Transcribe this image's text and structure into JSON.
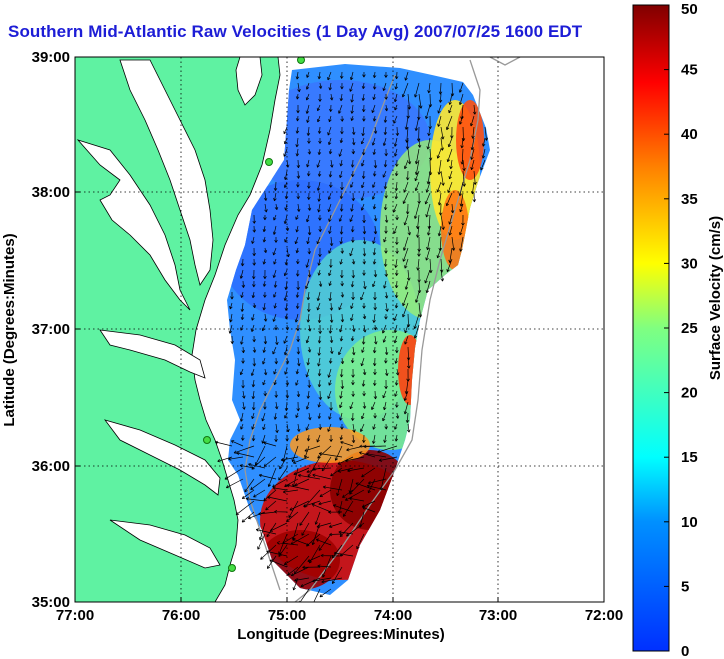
{
  "title": "Southern Mid-Atlantic Raw Velocities (1 Day Avg) 2007/07/25 1600 EDT",
  "xlabel": "Longitude (Degrees:Minutes)",
  "ylabel": "Latitude (Degrees:Minutes)",
  "colorbar_label": "Surface Velocity (cm/s)",
  "chart_data": {
    "type": "heatmap",
    "x_ticks": [
      "77:00",
      "76:00",
      "75:00",
      "74:00",
      "73:00",
      "72:00"
    ],
    "y_ticks": [
      "39:00",
      "38:00",
      "37:00",
      "36:00",
      "35:00"
    ],
    "xlim": [
      -77,
      -72
    ],
    "ylim": [
      35,
      39
    ],
    "colorbar": {
      "ticks": [
        "0",
        "5",
        "10",
        "15",
        "20",
        "25",
        "30",
        "35",
        "40",
        "45",
        "50"
      ],
      "range": [
        0,
        50
      ],
      "units": "cm/s"
    },
    "grid": true
  },
  "colors": {
    "land": "#5ff2a2",
    "ocean": "#ffffff",
    "title": "#1d1dd6",
    "station": "#44dd44"
  }
}
